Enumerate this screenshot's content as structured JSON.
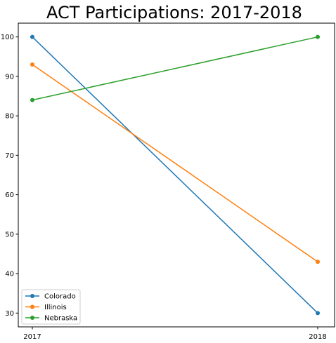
{
  "chart_data": {
    "type": "line",
    "title": "ACT Participations: 2017-2018",
    "xlabel": "",
    "ylabel": "",
    "categories": [
      "2017",
      "2018"
    ],
    "ylim": [
      26.5,
      103.5
    ],
    "yticks": [
      30,
      40,
      50,
      60,
      70,
      80,
      90,
      100
    ],
    "grid": false,
    "legend_position": "lower-left",
    "series": [
      {
        "name": "Colorado",
        "values": [
          100,
          30
        ],
        "color": "#1f77b4"
      },
      {
        "name": "Illinois",
        "values": [
          93,
          43
        ],
        "color": "#ff7f0e"
      },
      {
        "name": "Nebraska",
        "values": [
          84,
          100
        ],
        "color": "#2ca02c"
      }
    ]
  }
}
